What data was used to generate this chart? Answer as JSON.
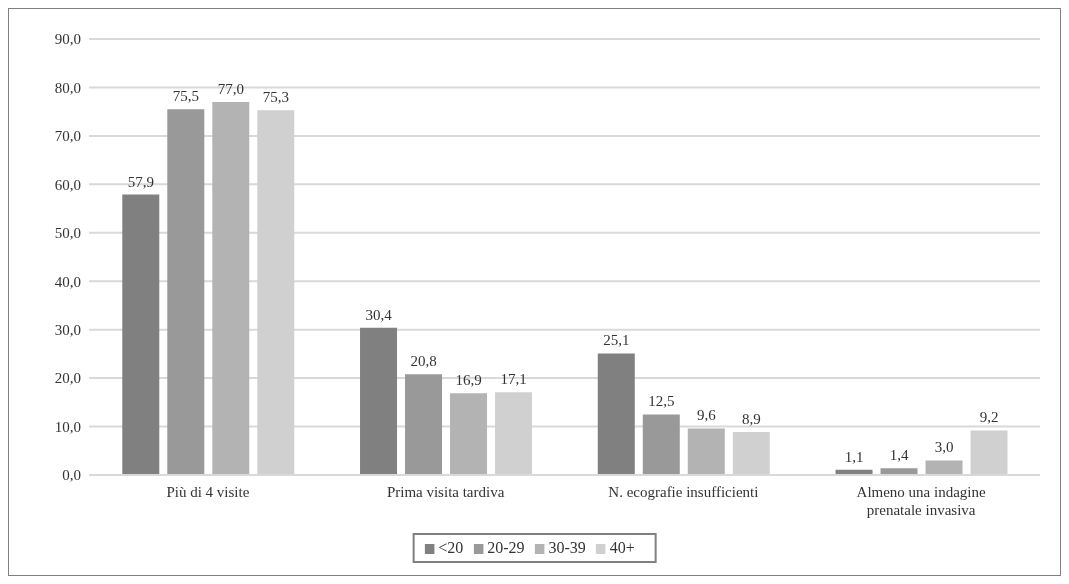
{
  "chart_data": {
    "type": "bar",
    "categories": [
      "Più di 4 visite",
      "Prima visita tardiva",
      "N. ecografie insufficienti",
      "Almeno una indagine prenatale invasiva"
    ],
    "series": [
      {
        "name": "<20",
        "color": "#808080",
        "values": [
          57.9,
          30.4,
          25.1,
          1.1
        ],
        "value_labels": [
          "57,9",
          "30,4",
          "25,1",
          "1,1"
        ]
      },
      {
        "name": "20-29",
        "color": "#999999",
        "values": [
          75.5,
          20.8,
          12.5,
          1.4
        ],
        "value_labels": [
          "75,5",
          "20,8",
          "12,5",
          "1,4"
        ]
      },
      {
        "name": "30-39",
        "color": "#b3b3b3",
        "values": [
          77.0,
          16.9,
          9.6,
          3.0
        ],
        "value_labels": [
          "77,0",
          "16,9",
          "9,6",
          "3,0"
        ]
      },
      {
        "name": "40+",
        "color": "#d0d0d0",
        "values": [
          75.3,
          17.1,
          8.9,
          9.2
        ],
        "value_labels": [
          "75,3",
          "17,1",
          "8,9",
          "9,2"
        ]
      }
    ],
    "ylim": [
      0,
      90
    ],
    "yticks": [
      {
        "value": 0,
        "label": "0,0"
      },
      {
        "value": 10,
        "label": "10,0"
      },
      {
        "value": 20,
        "label": "20,0"
      },
      {
        "value": 30,
        "label": "30,0"
      },
      {
        "value": 40,
        "label": "40,0"
      },
      {
        "value": 50,
        "label": "50,0"
      },
      {
        "value": 60,
        "label": "60,0"
      },
      {
        "value": 70,
        "label": "70,0"
      },
      {
        "value": 80,
        "label": "80,0"
      },
      {
        "value": 90,
        "label": "90,0"
      }
    ],
    "grid": "y",
    "legend": "bottom"
  }
}
